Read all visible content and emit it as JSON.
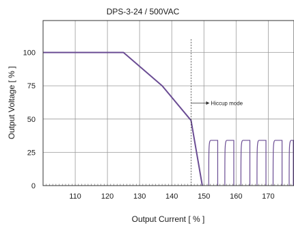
{
  "chart_data": {
    "type": "line",
    "title": "DPS-3-24 / 500VAC",
    "xlabel": "Output Current [ % ]",
    "ylabel": "Output Voltage [ % ]",
    "xlim": [
      100,
      178
    ],
    "ylim": [
      0,
      124
    ],
    "x_ticks": [
      110,
      120,
      130,
      140,
      150,
      160,
      170
    ],
    "y_ticks": [
      0,
      25,
      50,
      75,
      100
    ],
    "x_gridlines": [
      110,
      120,
      130,
      140,
      150,
      160,
      170
    ],
    "y_gridlines": [
      25,
      50,
      75,
      100
    ],
    "grid": true,
    "series": [
      {
        "color": "#6a4c93",
        "x": [
          100,
          125,
          137,
          146,
          149.5
        ],
        "y": [
          100,
          100,
          75,
          49,
          0
        ]
      }
    ],
    "hiccup_pulses": {
      "color": "#6a4c93",
      "starts": [
        151.5,
        156.5,
        161.5,
        166.5,
        171.5,
        176.5
      ],
      "width": 3,
      "peak": 34
    },
    "annotations": [
      {
        "text": "Hiccup mode",
        "x": 146,
        "y": 62,
        "style": "dashed-vertical-with-arrow"
      }
    ]
  }
}
